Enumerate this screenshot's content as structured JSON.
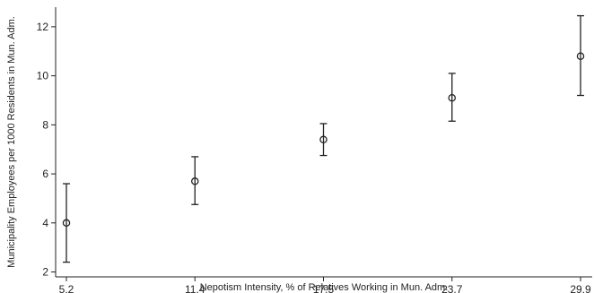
{
  "chart_data": {
    "type": "scatter",
    "title": "",
    "xlabel": "Nepotism Intensity, % of Relatives Working in Mun. Adm.",
    "ylabel": "Municipality Employees per 1000 Residents in Mun. Adm.",
    "x_categories": [
      "5.2",
      "11.4",
      "17.5",
      "23.7",
      "29.9"
    ],
    "y_ticks": [
      "2",
      "4",
      "6",
      "8",
      "10",
      "12"
    ],
    "ylim": [
      1.8,
      12.8
    ],
    "grid": false,
    "legend": "none",
    "series": [
      {
        "points": [
          {
            "x": "5.2",
            "y": 4.0,
            "lower": 2.4,
            "upper": 5.6
          },
          {
            "x": "11.4",
            "y": 5.7,
            "lower": 4.75,
            "upper": 6.7
          },
          {
            "x": "17.5",
            "y": 7.4,
            "lower": 6.75,
            "upper": 8.05
          },
          {
            "x": "23.7",
            "y": 9.1,
            "lower": 8.15,
            "upper": 10.1
          },
          {
            "x": "29.9",
            "y": 10.8,
            "lower": 9.2,
            "upper": 12.45
          }
        ]
      }
    ],
    "colors": {
      "marks": "#222222",
      "background": "#ffffff"
    }
  }
}
